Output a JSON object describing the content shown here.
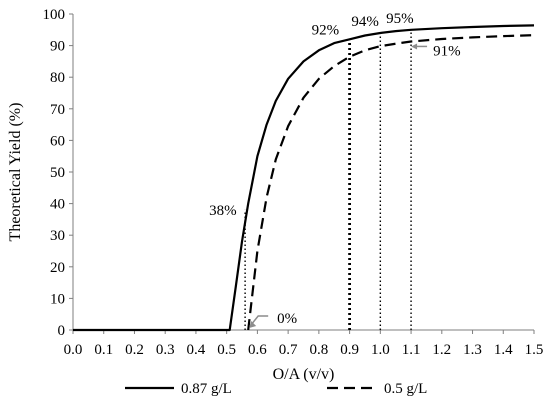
{
  "chart_data": {
    "type": "line",
    "title": "",
    "xlabel": "O/A (v/v)",
    "ylabel": "Theoretical Yield (%)",
    "xlim": [
      0.0,
      1.5
    ],
    "ylim": [
      0,
      100
    ],
    "x_ticks": [
      "0.0",
      "0.1",
      "0.2",
      "0.3",
      "0.4",
      "0.5",
      "0.6",
      "0.7",
      "0.8",
      "0.9",
      "1.0",
      "1.1",
      "1.2",
      "1.3",
      "1.4",
      "1.5"
    ],
    "y_ticks": [
      "0",
      "10",
      "20",
      "30",
      "40",
      "50",
      "60",
      "70",
      "80",
      "90",
      "100"
    ],
    "grid": false,
    "legend_position": "bottom",
    "series": [
      {
        "name": "0.87 g/L",
        "line_style": "solid",
        "color": "#000000",
        "x": [
          0.0,
          0.51,
          0.53,
          0.55,
          0.57,
          0.6,
          0.63,
          0.66,
          0.7,
          0.75,
          0.8,
          0.85,
          0.9,
          0.95,
          1.0,
          1.05,
          1.1,
          1.2,
          1.3,
          1.4,
          1.5
        ],
        "y": [
          0,
          0,
          14,
          28,
          40,
          55,
          65,
          72.5,
          79.5,
          85,
          88.5,
          90.8,
          92,
          93.2,
          94,
          94.6,
          95,
          95.5,
          95.9,
          96.2,
          96.4
        ]
      },
      {
        "name": "0.5 g/L",
        "line_style": "dashed",
        "color": "#000000",
        "x": [
          0.57,
          0.6,
          0.63,
          0.66,
          0.7,
          0.75,
          0.8,
          0.85,
          0.9,
          0.95,
          1.0,
          1.05,
          1.1,
          1.2,
          1.3,
          1.4,
          1.5
        ],
        "y": [
          0,
          25,
          42,
          54,
          64.5,
          73.5,
          79.5,
          83.5,
          86.5,
          88.5,
          89.8,
          90.6,
          91.3,
          92.1,
          92.6,
          93,
          93.3
        ]
      }
    ],
    "reference_lines": [
      {
        "x": 0.56,
        "y": 38,
        "style": "dotted-thin"
      },
      {
        "x": 0.9,
        "y": 92,
        "style": "dotted-bold"
      },
      {
        "x": 1.0,
        "y": 94,
        "style": "dotted-thin"
      },
      {
        "x": 1.1,
        "y": 95,
        "style": "dotted-thin"
      }
    ],
    "annotations": [
      {
        "text": "38%",
        "x": 0.56,
        "y": 38
      },
      {
        "text": "92%",
        "x": 0.9,
        "y": 92
      },
      {
        "text": "94%",
        "x": 1.0,
        "y": 94
      },
      {
        "text": "95%",
        "x": 1.1,
        "y": 95
      },
      {
        "text": "91%",
        "x": 1.1,
        "y": 91
      },
      {
        "text": "0%",
        "x": 0.57,
        "y": 0
      }
    ]
  }
}
